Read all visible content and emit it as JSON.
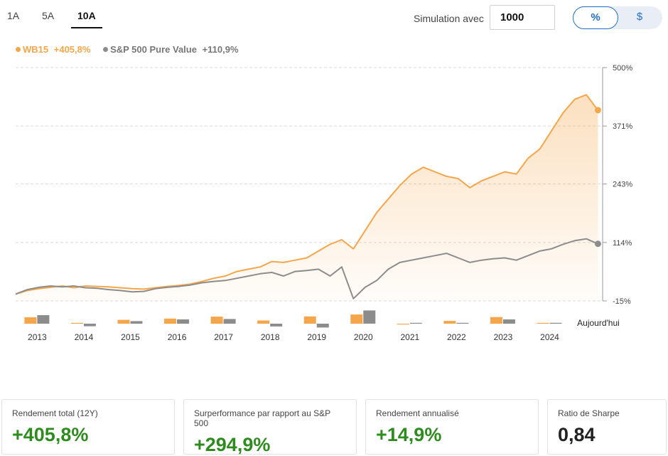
{
  "tabs": [
    {
      "label": "1A",
      "active": false
    },
    {
      "label": "5A",
      "active": false
    },
    {
      "label": "10A",
      "active": true
    }
  ],
  "simulation": {
    "label": "Simulation avec",
    "value": "1000"
  },
  "unit_toggle": [
    {
      "label": "%",
      "active": true
    },
    {
      "label": "$",
      "active": false
    }
  ],
  "colors": {
    "wb15": "#f5a64a",
    "sp500": "#8c8c8c",
    "accent": "#1f6fc9",
    "positive": "#2e8b1e"
  },
  "legend": [
    {
      "name": "WB15",
      "value": "+405,8%"
    },
    {
      "name": "S&P 500 Pure Value",
      "value": "+110,9%"
    }
  ],
  "chart_data": {
    "type": "line",
    "y_tick_labels": [
      "500%",
      "371%",
      "243%",
      "114%",
      "-15%"
    ],
    "y_ticks": [
      500,
      371,
      243,
      114,
      -15
    ],
    "ylim": [
      -15,
      500
    ],
    "xlim": [
      2012.75,
      2025.35
    ],
    "grid": true,
    "today_label": "Aujourd'hui",
    "series": [
      {
        "name": "WB15",
        "x": [
          2012.75,
          2013.0,
          2013.25,
          2013.5,
          2013.75,
          2014.0,
          2014.25,
          2014.5,
          2014.75,
          2015.0,
          2015.25,
          2015.5,
          2015.75,
          2016.0,
          2016.25,
          2016.5,
          2016.75,
          2017.0,
          2017.25,
          2017.5,
          2017.75,
          2018.0,
          2018.25,
          2018.5,
          2018.75,
          2019.0,
          2019.25,
          2019.5,
          2019.75,
          2020.0,
          2020.25,
          2020.5,
          2020.75,
          2021.0,
          2021.25,
          2021.5,
          2021.75,
          2022.0,
          2022.25,
          2022.5,
          2022.75,
          2023.0,
          2023.25,
          2023.5,
          2023.75,
          2024.0,
          2024.25,
          2024.5,
          2024.75,
          2025.0,
          2025.25
        ],
        "values": [
          0,
          8,
          12,
          15,
          18,
          14,
          18,
          17,
          16,
          14,
          12,
          11,
          14,
          17,
          19,
          22,
          28,
          35,
          40,
          50,
          55,
          60,
          72,
          70,
          75,
          80,
          95,
          110,
          120,
          100,
          140,
          180,
          210,
          240,
          265,
          280,
          270,
          260,
          255,
          235,
          250,
          260,
          270,
          265,
          300,
          320,
          360,
          400,
          430,
          440,
          406
        ]
      },
      {
        "name": "S&P 500 Pure Value",
        "x": [
          2012.75,
          2013.0,
          2013.25,
          2013.5,
          2013.75,
          2014.0,
          2014.25,
          2014.5,
          2014.75,
          2015.0,
          2015.25,
          2015.5,
          2015.75,
          2016.0,
          2016.25,
          2016.5,
          2016.75,
          2017.0,
          2017.25,
          2017.5,
          2017.75,
          2018.0,
          2018.25,
          2018.5,
          2018.75,
          2019.0,
          2019.25,
          2019.5,
          2019.75,
          2020.0,
          2020.25,
          2020.5,
          2020.75,
          2021.0,
          2021.25,
          2021.5,
          2021.75,
          2022.0,
          2022.25,
          2022.5,
          2022.75,
          2023.0,
          2023.25,
          2023.5,
          2023.75,
          2024.0,
          2024.25,
          2024.5,
          2024.75,
          2025.0,
          2025.25
        ],
        "values": [
          0,
          10,
          15,
          18,
          16,
          18,
          14,
          13,
          10,
          8,
          5,
          6,
          12,
          15,
          17,
          20,
          25,
          28,
          30,
          35,
          40,
          45,
          48,
          40,
          50,
          52,
          55,
          40,
          60,
          -10,
          15,
          30,
          55,
          70,
          75,
          80,
          85,
          90,
          80,
          70,
          75,
          78,
          80,
          75,
          85,
          95,
          100,
          110,
          118,
          122,
          111
        ]
      }
    ],
    "annual_bars": {
      "years": [
        "2013",
        "2014",
        "2015",
        "2016",
        "2017",
        "2018",
        "2019",
        "2020",
        "2021",
        "2022",
        "2023",
        "2024"
      ],
      "wb15": [
        30,
        3,
        18,
        24,
        33,
        15,
        34,
        43,
        -4,
        13,
        31,
        2
      ],
      "sp500": [
        40,
        -12,
        12,
        20,
        22,
        -13,
        -18,
        62,
        3,
        0,
        20,
        3
      ]
    }
  },
  "cards": [
    {
      "label": "Rendement total (12Y)",
      "value": "+405,8%",
      "tone": "pos"
    },
    {
      "label": "Surperformance par rapport au S&P 500",
      "value": "+294,9%",
      "tone": "pos"
    },
    {
      "label": "Rendement annualisé",
      "value": "+14,9%",
      "tone": "pos"
    },
    {
      "label": "Ratio de Sharpe",
      "value": "0,84",
      "tone": "neutral"
    }
  ]
}
